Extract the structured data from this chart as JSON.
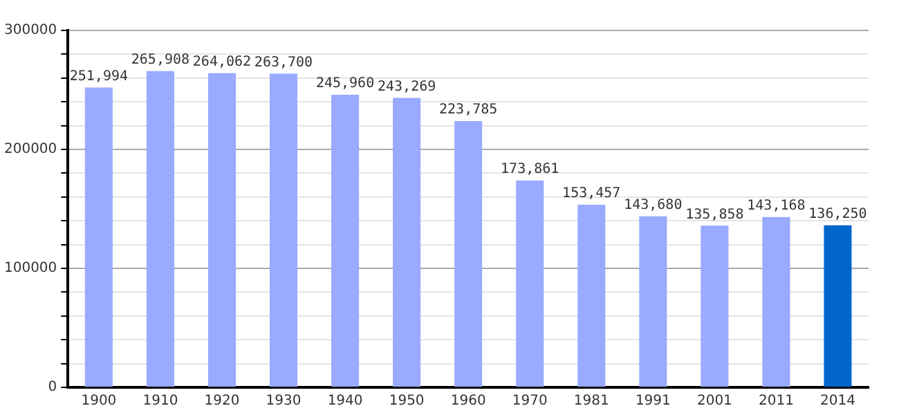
{
  "chart_data": {
    "type": "bar",
    "categories": [
      "1900",
      "1910",
      "1920",
      "1930",
      "1940",
      "1950",
      "1960",
      "1970",
      "1981",
      "1991",
      "2001",
      "2011",
      "2014"
    ],
    "values": [
      251994,
      265908,
      264062,
      263700,
      245960,
      243269,
      223785,
      173861,
      153457,
      143680,
      135858,
      143168,
      136250
    ],
    "colors": [
      "#99aaff",
      "#99aaff",
      "#99aaff",
      "#99aaff",
      "#99aaff",
      "#99aaff",
      "#99aaff",
      "#99aaff",
      "#99aaff",
      "#99aaff",
      "#99aaff",
      "#99aaff",
      "#0066cc"
    ],
    "value_labels": [
      "251,994",
      "265,908",
      "264,062",
      "263,700",
      "245,960",
      "243,269",
      "223,785",
      "173,861",
      "153,457",
      "143,680",
      "135,858",
      "143,168",
      "136,250"
    ],
    "ylim": [
      0,
      300000
    ],
    "yticks": [
      0,
      {
        "value": 20000,
        "label": null
      },
      {
        "value": 40000,
        "label": null
      },
      {
        "value": 60000,
        "label": null
      },
      {
        "value": 80000,
        "label": null
      },
      100000,
      {
        "value": 120000,
        "label": null
      },
      {
        "value": 140000,
        "label": null
      },
      {
        "value": 160000,
        "label": null
      },
      {
        "value": 180000,
        "label": null
      },
      200000,
      {
        "value": 220000,
        "label": null
      },
      {
        "value": 240000,
        "label": null
      },
      {
        "value": 260000,
        "label": null
      },
      {
        "value": 280000,
        "label": null
      },
      300000
    ],
    "grid": "y"
  }
}
